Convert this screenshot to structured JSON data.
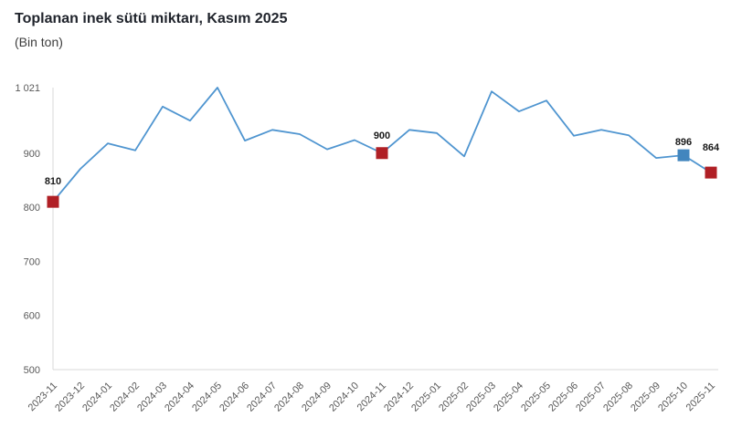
{
  "header": {
    "title": "Toplanan inek sütü miktarı, Kasım 2025",
    "subtitle": "(Bin ton)"
  },
  "colors": {
    "line": "#4f95d0",
    "marker_current": "#4286be",
    "marker_same_month": "#b01f25",
    "axis": "#d9d9d9",
    "tick_text": "#595959",
    "data_label_text": "#1a1a1a"
  },
  "chart_data": {
    "type": "line",
    "title": "Toplanan inek sütü miktarı, Kasım 2025",
    "unit": "Bin ton",
    "grid": false,
    "legend": false,
    "categories": [
      "2023-11",
      "2023-12",
      "2024-01",
      "2024-02",
      "2024-03",
      "2024-04",
      "2024-05",
      "2024-06",
      "2024-07",
      "2024-08",
      "2024-09",
      "2024-10",
      "2024-11",
      "2024-12",
      "2025-01",
      "2025-02",
      "2025-03",
      "2025-04",
      "2025-05",
      "2025-06",
      "2025-07",
      "2025-08",
      "2025-09",
      "2025-10",
      "2025-11"
    ],
    "values": [
      810,
      871,
      918,
      905,
      986,
      960,
      1021,
      923,
      943,
      935,
      907,
      924,
      900,
      943,
      937,
      894,
      1014,
      977,
      997,
      932,
      943,
      933,
      891,
      896,
      864
    ],
    "ylim": [
      500,
      1021
    ],
    "yticks": [
      {
        "value": 1021,
        "label": "1 021"
      },
      {
        "value": 900,
        "label": "900"
      },
      {
        "value": 800,
        "label": "800"
      },
      {
        "value": 700,
        "label": "700"
      },
      {
        "value": 600,
        "label": "600"
      },
      {
        "value": 500,
        "label": "500"
      }
    ],
    "annotations": [
      {
        "category": "2023-11",
        "index": 0,
        "label": "810",
        "color_key": "marker_same_month",
        "label_dy": -19
      },
      {
        "category": "2024-11",
        "index": 12,
        "label": "900",
        "color_key": "marker_same_month",
        "label_dy": -16
      },
      {
        "category": "2025-10",
        "index": 23,
        "label": "896",
        "color_key": "marker_current",
        "label_dy": -11
      },
      {
        "category": "2025-11",
        "index": 24,
        "label": "864",
        "color_key": "marker_same_month",
        "label_dy": -24
      }
    ]
  }
}
